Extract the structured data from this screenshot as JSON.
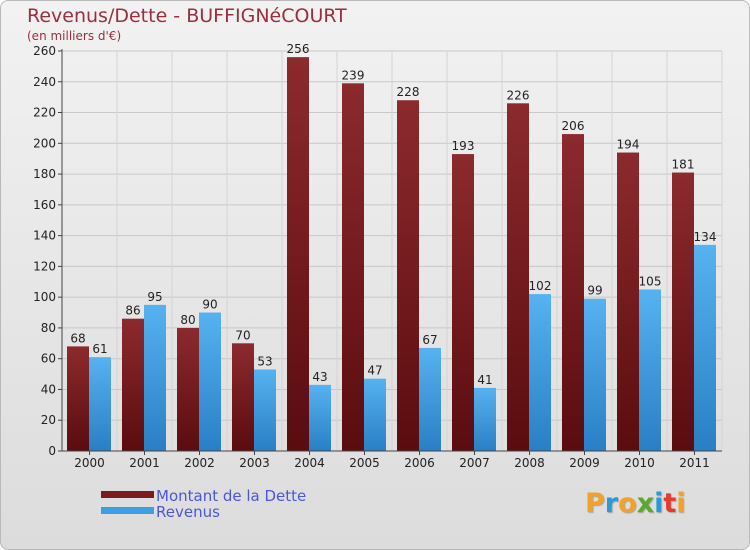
{
  "title": "Revenus/Dette - BUFFIGNéCOURT",
  "subtitle": "(en milliers d'€)",
  "logo": {
    "letters": [
      "P",
      "r",
      "o",
      "x",
      "i",
      "t",
      "i"
    ],
    "colors": [
      "#f0a22a",
      "#2a9ad6",
      "#f0a22a",
      "#5aa82c",
      "#2a9ad6",
      "#e43c2c",
      "#f0a22a"
    ]
  },
  "chart_data": {
    "type": "bar",
    "title": "Revenus/Dette - BUFFIGNéCOURT",
    "ylabel": "(en milliers d'€)",
    "categories": [
      "2000",
      "2001",
      "2002",
      "2003",
      "2004",
      "2005",
      "2006",
      "2007",
      "2008",
      "2009",
      "2010",
      "2011"
    ],
    "series": [
      {
        "name": "Montant de la Dette",
        "color": "#7a1b1f",
        "values": [
          68,
          86,
          80,
          70,
          256,
          239,
          228,
          193,
          226,
          206,
          194,
          181
        ]
      },
      {
        "name": "Revenus",
        "color": "#3d9ee0",
        "values": [
          61,
          95,
          90,
          53,
          43,
          47,
          67,
          41,
          102,
          99,
          105,
          134
        ]
      }
    ],
    "ylim": [
      0,
      260
    ],
    "yticks": [
      0,
      20,
      40,
      60,
      80,
      100,
      120,
      140,
      160,
      180,
      200,
      220,
      240,
      260
    ],
    "grid": true,
    "legend": "bottom-left"
  }
}
